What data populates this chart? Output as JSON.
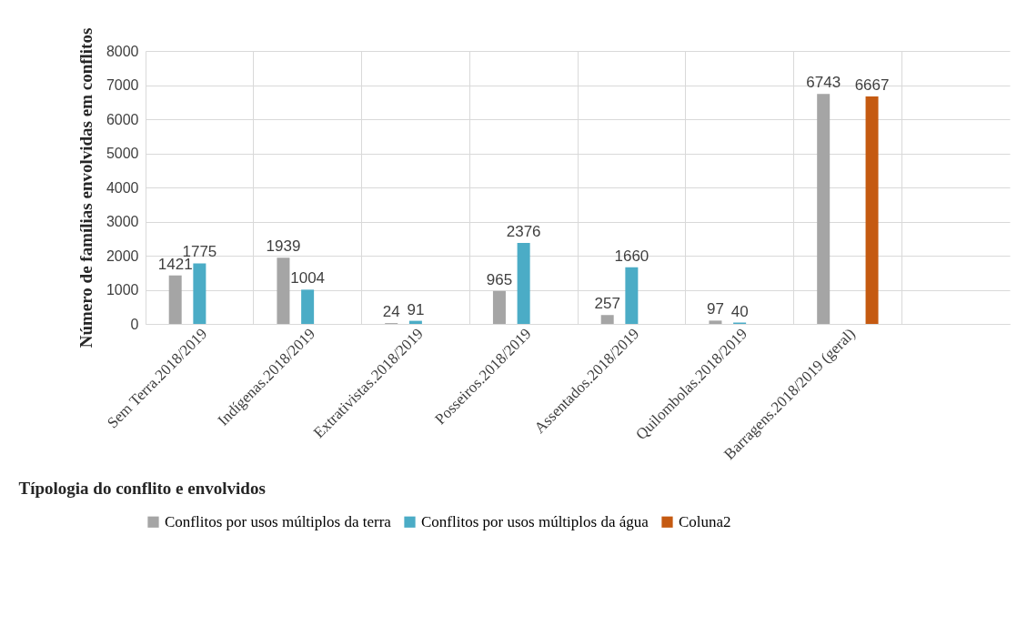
{
  "chart_data": {
    "type": "bar",
    "xlabel": "Típologia do conflito e envolvidos",
    "ylabel": "Número de famílias envolvidas em conflitos",
    "categories": [
      "Sem Terra.2018/2019",
      "Indígenas.2018/2019",
      "Extrativistas.2018/2019",
      "Posseiros.2018/2019",
      "Assentados.2018/2019",
      "Quilombolas.2018/2019",
      "Barragens.2018/2019 (geral)",
      null
    ],
    "series": [
      {
        "name": "Conflitos por usos múltiplos da terra",
        "color": "#a5a5a5",
        "values": [
          1421,
          1939,
          24,
          965,
          257,
          97,
          6743,
          null
        ]
      },
      {
        "name": "Conflitos por usos múltiplos da água",
        "color": "#4bacc6",
        "values": [
          1775,
          1004,
          91,
          2376,
          1660,
          40,
          null,
          null
        ]
      },
      {
        "name": "Coluna2",
        "color": "#c55a11",
        "values": [
          null,
          null,
          null,
          null,
          null,
          null,
          6667,
          null
        ]
      }
    ],
    "ylim": [
      0,
      8000
    ],
    "yticks": [
      0,
      1000,
      2000,
      3000,
      4000,
      5000,
      6000,
      7000,
      8000
    ],
    "grid": true,
    "data_labels": true,
    "legend": "bottom"
  }
}
